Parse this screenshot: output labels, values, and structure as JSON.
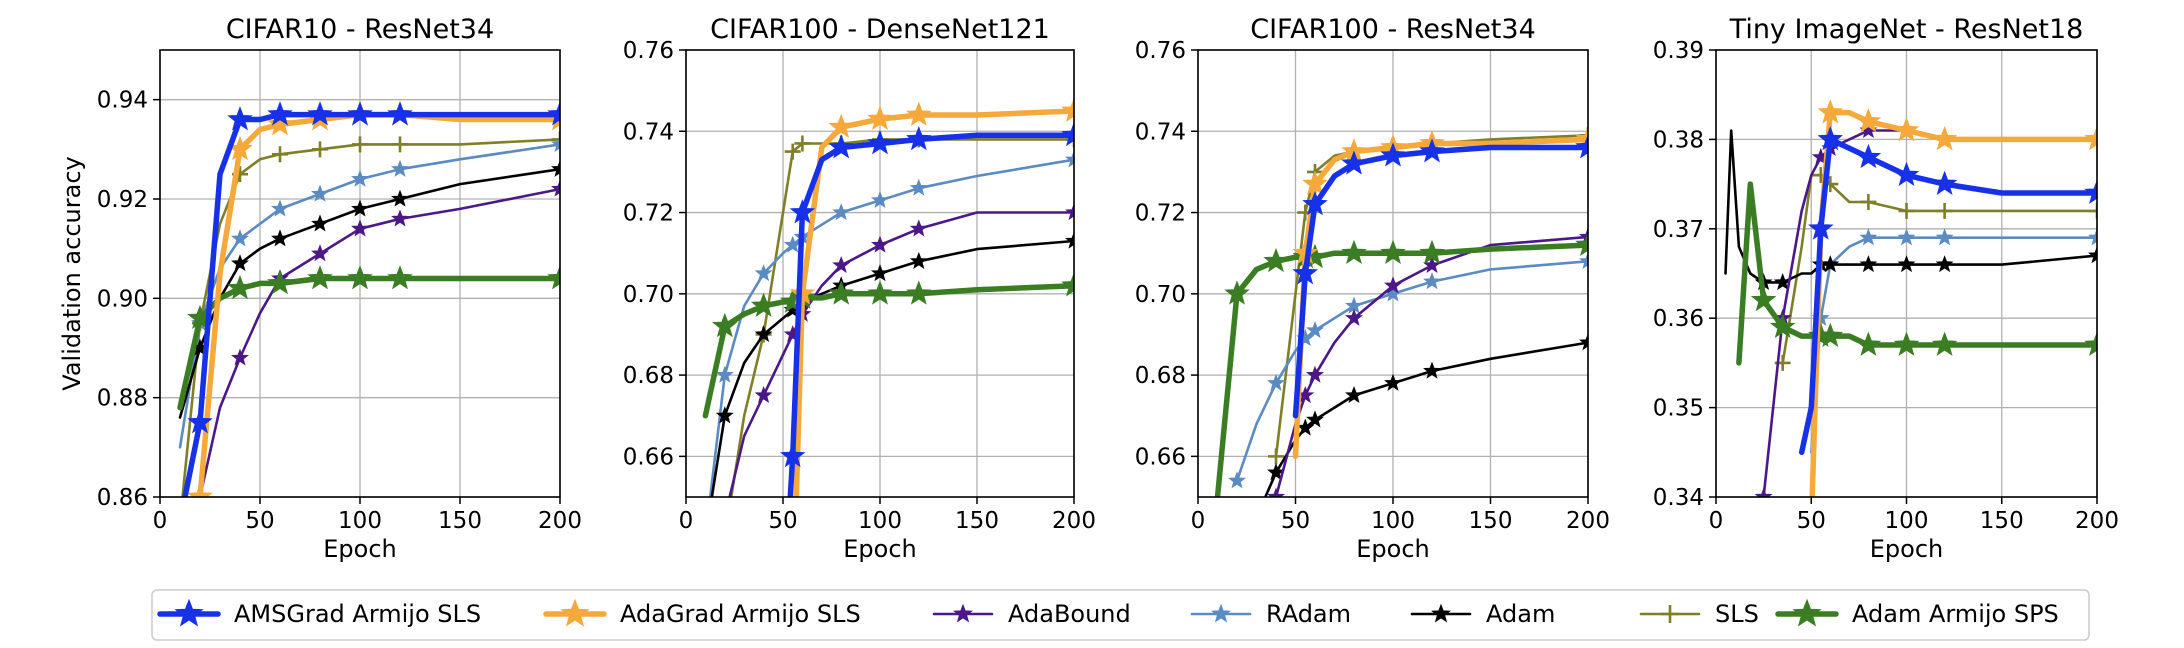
{
  "figure": {
    "legend": [
      {
        "name": "AMSGrad Armijo SLS",
        "color": "#1631e8",
        "marker": "star",
        "width": "thick"
      },
      {
        "name": "AdaGrad Armijo SLS",
        "color": "#f6a93b",
        "marker": "star",
        "width": "thick"
      },
      {
        "name": "AdaBound",
        "color": "#4b1789",
        "marker": "star",
        "width": "thin"
      },
      {
        "name": "RAdam",
        "color": "#5b8bc3",
        "marker": "star",
        "width": "thin"
      },
      {
        "name": "Adam",
        "color": "#000000",
        "marker": "star",
        "width": "thin"
      },
      {
        "name": "SLS",
        "color": "#7f7f27",
        "marker": "plus",
        "width": "thin"
      },
      {
        "name": "Adam Armijo SPS",
        "color": "#3a7d23",
        "marker": "star",
        "width": "thick"
      }
    ]
  },
  "chart_data": [
    {
      "type": "line",
      "title": "CIFAR10 - ResNet34",
      "xlabel": "Epoch",
      "ylabel": "Validation accuracy",
      "xlim": [
        0,
        200
      ],
      "ylim": [
        0.86,
        0.95
      ],
      "xticks": [
        0,
        50,
        100,
        150,
        200
      ],
      "xtick_labels": [
        "0",
        "50",
        "100",
        "150",
        "200"
      ],
      "yticks": [
        0.86,
        0.88,
        0.9,
        0.92,
        0.94
      ],
      "ytick_labels": [
        "0.86",
        "0.88",
        "0.90",
        "0.92",
        "0.94"
      ],
      "x": [
        0,
        10,
        20,
        30,
        40,
        50,
        60,
        80,
        100,
        120,
        150,
        200
      ],
      "series": [
        {
          "name": "AMSGrad Armijo SLS",
          "values": [
            null,
            0.855,
            0.875,
            0.925,
            0.936,
            0.936,
            0.937,
            0.937,
            0.937,
            0.937,
            0.937,
            0.937
          ]
        },
        {
          "name": "AdaGrad Armijo SLS",
          "values": [
            null,
            null,
            0.86,
            0.905,
            0.93,
            0.934,
            0.935,
            0.936,
            0.937,
            0.937,
            0.936,
            0.936
          ]
        },
        {
          "name": "AdaBound",
          "values": [
            null,
            null,
            0.86,
            0.878,
            0.888,
            0.897,
            0.904,
            0.909,
            0.914,
            0.916,
            0.918,
            0.922
          ]
        },
        {
          "name": "RAdam",
          "values": [
            null,
            0.87,
            0.895,
            0.906,
            0.912,
            0.915,
            0.918,
            0.921,
            0.924,
            0.926,
            0.928,
            0.931
          ]
        },
        {
          "name": "Adam",
          "values": [
            null,
            0.876,
            0.89,
            0.9,
            0.907,
            0.91,
            0.912,
            0.915,
            0.918,
            0.92,
            0.923,
            0.926
          ]
        },
        {
          "name": "SLS",
          "values": [
            null,
            0.855,
            0.895,
            0.915,
            0.925,
            0.928,
            0.929,
            0.93,
            0.931,
            0.931,
            0.931,
            0.932
          ]
        },
        {
          "name": "Adam Armijo SPS",
          "values": [
            null,
            0.878,
            0.896,
            0.9,
            0.902,
            0.903,
            0.903,
            0.904,
            0.904,
            0.904,
            0.904,
            0.904
          ]
        }
      ]
    },
    {
      "type": "line",
      "title": "CIFAR100 - DenseNet121",
      "xlabel": "Epoch",
      "ylabel": "",
      "xlim": [
        0,
        200
      ],
      "ylim": [
        0.65,
        0.76
      ],
      "xticks": [
        0,
        50,
        100,
        150,
        200
      ],
      "xtick_labels": [
        "0",
        "50",
        "100",
        "150",
        "200"
      ],
      "yticks": [
        0.66,
        0.68,
        0.7,
        0.72,
        0.74,
        0.76
      ],
      "ytick_labels": [
        "0.66",
        "0.68",
        "0.70",
        "0.72",
        "0.74",
        "0.76"
      ],
      "x": [
        0,
        10,
        20,
        30,
        40,
        50,
        55,
        60,
        70,
        80,
        100,
        120,
        150,
        200
      ],
      "series": [
        {
          "name": "AMSGrad Armijo SLS",
          "values": [
            null,
            null,
            null,
            null,
            null,
            0.62,
            0.66,
            0.72,
            0.733,
            0.736,
            0.737,
            0.738,
            0.739,
            0.739
          ]
        },
        {
          "name": "AdaGrad Armijo SLS",
          "values": [
            null,
            null,
            null,
            null,
            null,
            null,
            0.62,
            0.7,
            0.736,
            0.741,
            0.743,
            0.744,
            0.744,
            0.745
          ]
        },
        {
          "name": "AdaBound",
          "values": [
            null,
            null,
            0.645,
            0.665,
            0.675,
            0.685,
            0.69,
            0.695,
            0.702,
            0.707,
            0.712,
            0.716,
            0.72,
            0.72
          ]
        },
        {
          "name": "RAdam",
          "values": [
            null,
            0.64,
            0.68,
            0.697,
            0.705,
            0.71,
            0.712,
            0.714,
            0.717,
            0.72,
            0.723,
            0.726,
            0.729,
            0.733
          ]
        },
        {
          "name": "Adam",
          "values": [
            null,
            0.64,
            0.67,
            0.683,
            0.69,
            0.694,
            0.696,
            0.698,
            0.7,
            0.702,
            0.705,
            0.708,
            0.711,
            0.713
          ]
        },
        {
          "name": "SLS",
          "values": [
            null,
            null,
            0.64,
            0.67,
            0.69,
            0.72,
            0.735,
            0.737,
            0.737,
            0.737,
            0.738,
            0.738,
            0.738,
            0.738
          ]
        },
        {
          "name": "Adam Armijo SPS",
          "values": [
            null,
            0.67,
            0.692,
            0.695,
            0.697,
            0.698,
            0.698,
            0.699,
            0.699,
            0.7,
            0.7,
            0.7,
            0.701,
            0.702
          ]
        }
      ]
    },
    {
      "type": "line",
      "title": "CIFAR100 - ResNet34",
      "xlabel": "Epoch",
      "ylabel": "",
      "xlim": [
        0,
        200
      ],
      "ylim": [
        0.65,
        0.76
      ],
      "xticks": [
        0,
        50,
        100,
        150,
        200
      ],
      "xtick_labels": [
        "0",
        "50",
        "100",
        "150",
        "200"
      ],
      "yticks": [
        0.66,
        0.68,
        0.7,
        0.72,
        0.74,
        0.76
      ],
      "ytick_labels": [
        "0.66",
        "0.68",
        "0.70",
        "0.72",
        "0.74",
        "0.76"
      ],
      "x": [
        0,
        10,
        20,
        30,
        40,
        50,
        55,
        60,
        70,
        80,
        100,
        120,
        150,
        200
      ],
      "series": [
        {
          "name": "AMSGrad Armijo SLS",
          "values": [
            null,
            null,
            null,
            null,
            null,
            0.67,
            0.705,
            0.722,
            0.729,
            0.732,
            0.734,
            0.735,
            0.736,
            0.736
          ]
        },
        {
          "name": "AdaGrad Armijo SLS",
          "values": [
            null,
            null,
            null,
            null,
            null,
            0.66,
            0.71,
            0.727,
            0.733,
            0.735,
            0.736,
            0.737,
            0.737,
            0.738
          ]
        },
        {
          "name": "AdaBound",
          "values": [
            null,
            null,
            null,
            null,
            0.65,
            0.668,
            0.675,
            0.68,
            0.688,
            0.694,
            0.702,
            0.707,
            0.712,
            0.714
          ]
        },
        {
          "name": "RAdam",
          "values": [
            null,
            null,
            0.654,
            0.668,
            0.678,
            0.686,
            0.689,
            0.691,
            0.694,
            0.697,
            0.7,
            0.703,
            0.706,
            0.708
          ]
        },
        {
          "name": "Adam",
          "values": [
            null,
            null,
            null,
            0.645,
            0.656,
            0.664,
            0.667,
            0.669,
            0.672,
            0.675,
            0.678,
            0.681,
            0.684,
            0.688
          ]
        },
        {
          "name": "SLS",
          "values": [
            null,
            null,
            null,
            null,
            0.66,
            0.7,
            0.72,
            0.73,
            0.734,
            0.735,
            0.736,
            0.737,
            0.738,
            0.739
          ]
        },
        {
          "name": "Adam Armijo SPS",
          "values": [
            null,
            0.65,
            0.7,
            0.706,
            0.708,
            0.709,
            0.709,
            0.709,
            0.71,
            0.71,
            0.71,
            0.71,
            0.711,
            0.712
          ]
        }
      ]
    },
    {
      "type": "line",
      "title": "Tiny ImageNet - ResNet18",
      "xlabel": "Epoch",
      "ylabel": "",
      "xlim": [
        0,
        200
      ],
      "ylim": [
        0.34,
        0.39
      ],
      "xticks": [
        0,
        50,
        100,
        150,
        200
      ],
      "xtick_labels": [
        "0",
        "50",
        "100",
        "150",
        "200"
      ],
      "yticks": [
        0.34,
        0.35,
        0.36,
        0.37,
        0.38,
        0.39
      ],
      "ytick_labels": [
        "0.34",
        "0.35",
        "0.36",
        "0.37",
        "0.38",
        "0.39"
      ],
      "x": [
        0,
        5,
        8,
        12,
        18,
        25,
        35,
        45,
        50,
        55,
        60,
        70,
        80,
        100,
        120,
        150,
        200
      ],
      "series": [
        {
          "name": "AMSGrad Armijo SLS",
          "values": [
            null,
            null,
            null,
            null,
            null,
            null,
            null,
            0.345,
            0.35,
            0.37,
            0.38,
            0.379,
            0.378,
            0.376,
            0.375,
            0.374,
            0.374
          ]
        },
        {
          "name": "AdaGrad Armijo SLS",
          "values": [
            null,
            null,
            null,
            null,
            null,
            null,
            null,
            null,
            0.337,
            0.37,
            0.383,
            0.383,
            0.382,
            0.381,
            0.38,
            0.38,
            0.38
          ]
        },
        {
          "name": "AdaBound",
          "values": [
            null,
            null,
            null,
            null,
            null,
            0.34,
            0.36,
            0.372,
            0.376,
            0.378,
            0.379,
            0.38,
            0.381,
            0.381,
            0.38,
            0.38,
            0.38
          ]
        },
        {
          "name": "RAdam",
          "values": [
            null,
            null,
            null,
            null,
            null,
            null,
            null,
            null,
            0.345,
            0.36,
            0.366,
            0.368,
            0.369,
            0.369,
            0.369,
            0.369,
            0.369
          ]
        },
        {
          "name": "Adam",
          "values": [
            null,
            0.365,
            0.381,
            0.368,
            0.365,
            0.364,
            0.364,
            0.365,
            0.365,
            0.366,
            0.366,
            0.366,
            0.366,
            0.366,
            0.366,
            0.366,
            0.367
          ]
        },
        {
          "name": "SLS",
          "values": [
            null,
            null,
            null,
            null,
            null,
            null,
            0.355,
            0.368,
            0.376,
            0.376,
            0.375,
            0.373,
            0.373,
            0.372,
            0.372,
            0.372,
            0.372
          ]
        },
        {
          "name": "Adam Armijo SPS",
          "values": [
            null,
            null,
            null,
            0.355,
            0.375,
            0.362,
            0.359,
            0.358,
            0.358,
            0.358,
            0.358,
            0.358,
            0.357,
            0.357,
            0.357,
            0.357,
            0.357
          ]
        }
      ]
    }
  ]
}
